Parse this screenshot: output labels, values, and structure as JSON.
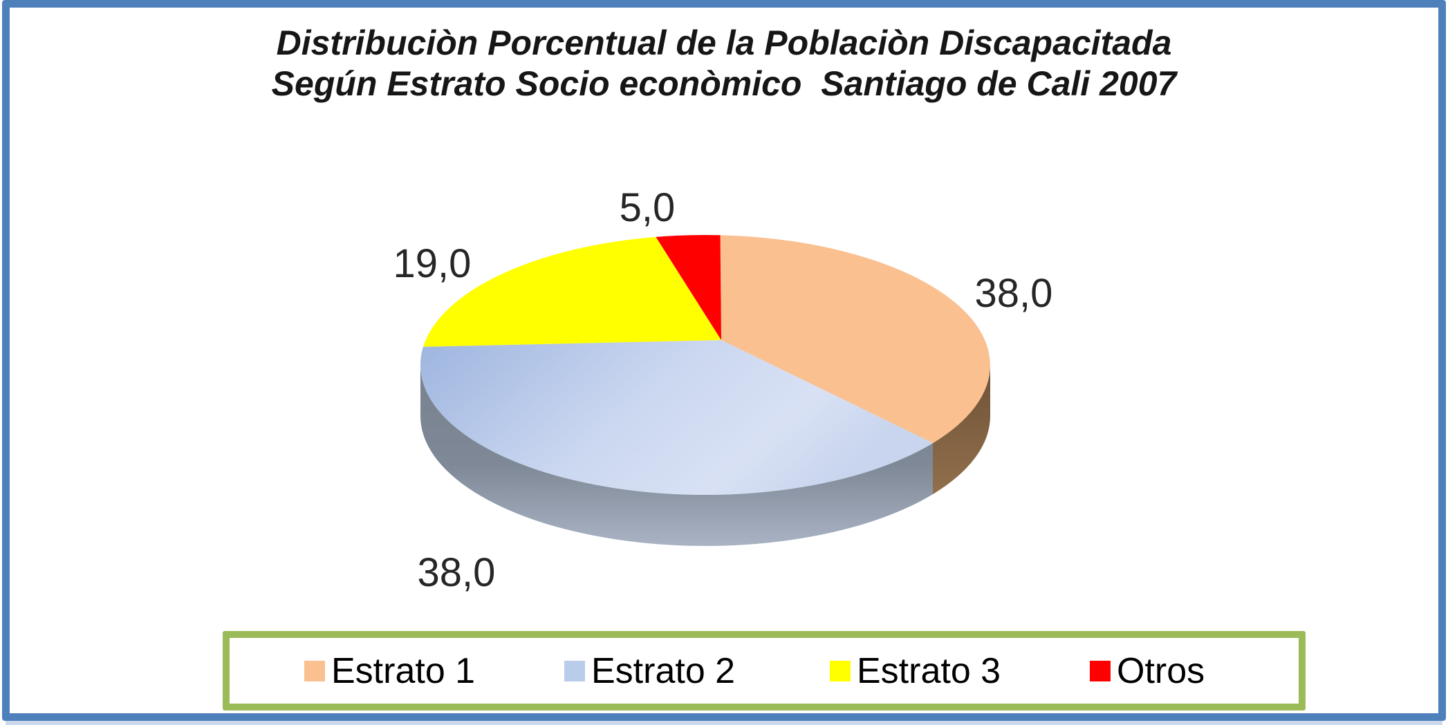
{
  "title": {
    "line1": "Distribuciòn Porcentual de la Poblaciòn Discapacitada",
    "line2": "Según Estrato Socio econòmico  Santiago de Cali 2007"
  },
  "chart_data": {
    "type": "pie",
    "style": "3d-pie",
    "title": "Distribuciòn Porcentual de la Poblaciòn Discapacitada Según Estrato Socio econòmico Santiago de Cali 2007",
    "categories": [
      "Estrato 1",
      "Estrato 2",
      "Estrato 3",
      "Otros"
    ],
    "values": [
      38.0,
      38.0,
      19.0,
      5.0
    ],
    "value_labels": [
      "38,0",
      "38,0",
      "19,0",
      "5,0"
    ],
    "unit": "percent",
    "colors": [
      "#FAC090",
      "#B9CCE9",
      "#FFFF00",
      "#FE0000"
    ],
    "start_angle": "12-oclock",
    "direction": "clockwise",
    "legend_position": "bottom"
  },
  "legend": {
    "border_color": "#9BBB59",
    "items": [
      {
        "label": "Estrato 1",
        "color": "#FAC090"
      },
      {
        "label": "Estrato 2",
        "color": "#B9CCE9"
      },
      {
        "label": "Estrato 3",
        "color": "#FFFF00"
      },
      {
        "label": "Otros",
        "color": "#FE0000"
      }
    ]
  },
  "frame": {
    "border_color": "#4E80BC"
  }
}
